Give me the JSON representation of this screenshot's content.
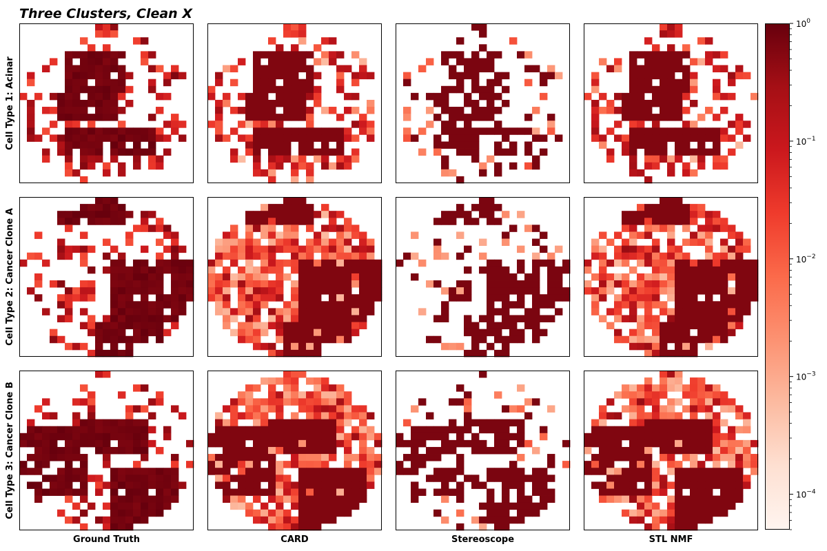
{
  "chart_data": {
    "type": "heatmap",
    "title": "Three Clusters, Clean X",
    "columns": [
      "Ground Truth",
      "CARD",
      "Stereoscope",
      "STL NMF"
    ],
    "rows": [
      "Cell Type 1: Acinar",
      "Cell Type 2: Cancer Clone A",
      "Cell Type 3: Cancer Clone B"
    ],
    "grid_size": [
      23,
      23
    ],
    "colormap": "Reds",
    "color_scale": "log",
    "color_range": [
      5e-05,
      1
    ],
    "colorbar_ticks": [
      {
        "value": 1,
        "base": "10",
        "exp": "0"
      },
      {
        "value": 0.1,
        "base": "10",
        "exp": "−1"
      },
      {
        "value": 0.01,
        "base": "10",
        "exp": "−2"
      },
      {
        "value": 0.001,
        "base": "10",
        "exp": "−3"
      },
      {
        "value": 0.0001,
        "base": "10",
        "exp": "−4"
      }
    ],
    "note_values": "Each panel is a 23x23 spatial grid of estimated cell-type proportions; blank cells are zero/missing. Proportion values shown only by color."
  }
}
